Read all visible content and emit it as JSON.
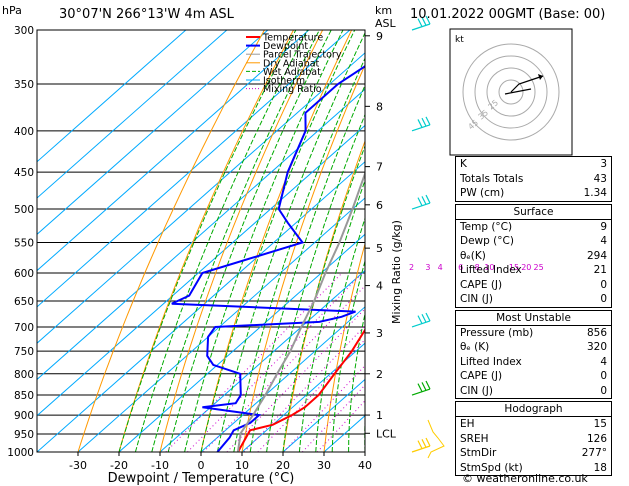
{
  "header": {
    "location": "30°07'N  266°13'W  4m  ASL",
    "datetime": "10.01.2022  00GMT  (Base: 00)",
    "p_unit": "hPa",
    "km_unit": "km",
    "asl": "ASL"
  },
  "axes": {
    "xlabel": "Dewpoint / Temperature (°C)",
    "mixing_label": "Mixing Ratio (g/kg)"
  },
  "colors": {
    "temperature": "#ff0000",
    "dewpoint": "#0000ff",
    "parcel": "#999999",
    "dry_adiabat": "#ff9900",
    "wet_adiabat": "#00aa00",
    "isotherm": "#00aaff",
    "mixing_ratio": "#cc00cc",
    "wind": "#00cccc"
  },
  "legend": [
    "Temperature",
    "Dewpoint",
    "Parcel Trajectory",
    "Dry Adiabat",
    "Wet Adiabat",
    "Isotherm",
    "Mixing Ratio"
  ],
  "chart_data": {
    "type": "line",
    "title": "30°07'N  266°13'W  4m  ASL",
    "xlabel": "Dewpoint / Temperature (°C)",
    "ylabel": "hPa",
    "x_ticks": [
      "-30",
      "-20",
      "-10",
      "0",
      "10",
      "20",
      "30",
      "40"
    ],
    "p_ticks": [
      "300",
      "350",
      "400",
      "450",
      "500",
      "550",
      "600",
      "650",
      "700",
      "750",
      "800",
      "850",
      "900",
      "950",
      "1000"
    ],
    "xlim": [
      -35,
      40
    ],
    "ylim": [
      1000,
      300
    ],
    "km_ticks": [
      {
        "p": 305,
        "label": "9"
      },
      {
        "p": 373,
        "label": "8"
      },
      {
        "p": 443,
        "label": "7"
      },
      {
        "p": 494,
        "label": "6"
      },
      {
        "p": 559,
        "label": "5"
      },
      {
        "p": 622,
        "label": "4"
      },
      {
        "p": 712,
        "label": "3"
      },
      {
        "p": 800,
        "label": "2"
      },
      {
        "p": 900,
        "label": "1"
      },
      {
        "p": 948,
        "label": "LCL"
      }
    ],
    "mixing_ratio_labels": [
      {
        "w": "2",
        "t": 2
      },
      {
        "w": "3",
        "t": 6
      },
      {
        "w": "4",
        "t": 9
      },
      {
        "w": "6",
        "t": 14
      },
      {
        "w": "8",
        "t": 18
      },
      {
        "w": "10",
        "t": 21
      },
      {
        "w": "15",
        "t": 27
      },
      {
        "w": "20",
        "t": 30
      },
      {
        "w": "25",
        "t": 33
      }
    ],
    "series": [
      {
        "name": "Temperature",
        "points": [
          [
            1000,
            9
          ],
          [
            960,
            7
          ],
          [
            940,
            6
          ],
          [
            925,
            10
          ],
          [
            900,
            12
          ],
          [
            880,
            13
          ],
          [
            850,
            13
          ],
          [
            800,
            11
          ],
          [
            750,
            9
          ],
          [
            700,
            6
          ],
          [
            680,
            5
          ],
          [
            650,
            4
          ],
          [
            600,
            -1
          ],
          [
            550,
            -5
          ],
          [
            500,
            -10
          ],
          [
            450,
            -16
          ],
          [
            400,
            -23
          ],
          [
            350,
            -32
          ],
          [
            300,
            -42
          ]
        ]
      },
      {
        "name": "Dewpoint",
        "points": [
          [
            1000,
            4
          ],
          [
            960,
            3
          ],
          [
            940,
            2
          ],
          [
            920,
            4
          ],
          [
            900,
            4
          ],
          [
            880,
            -12
          ],
          [
            870,
            -5
          ],
          [
            850,
            -6
          ],
          [
            800,
            -12
          ],
          [
            780,
            -21
          ],
          [
            760,
            -25
          ],
          [
            720,
            -30
          ],
          [
            700,
            -31
          ],
          [
            690,
            -7
          ],
          [
            680,
            -3
          ],
          [
            670,
            -1
          ],
          [
            655,
            -48
          ],
          [
            640,
            -46
          ],
          [
            600,
            -49
          ],
          [
            550,
            -33
          ],
          [
            520,
            -42
          ],
          [
            500,
            -48
          ],
          [
            450,
            -56
          ],
          [
            400,
            -63
          ],
          [
            380,
            -68
          ],
          [
            350,
            -68
          ],
          [
            330,
            -66
          ],
          [
            300,
            -72
          ]
        ]
      },
      {
        "name": "Parcel Trajectory",
        "points": [
          [
            1000,
            9
          ],
          [
            948,
            4.5
          ],
          [
            900,
            2.5
          ],
          [
            850,
            0
          ],
          [
            800,
            -3
          ],
          [
            750,
            -6
          ],
          [
            700,
            -10
          ],
          [
            650,
            -14
          ],
          [
            600,
            -19
          ],
          [
            550,
            -24
          ],
          [
            500,
            -30
          ],
          [
            450,
            -37
          ],
          [
            400,
            -45
          ],
          [
            350,
            -55
          ],
          [
            300,
            -66
          ]
        ]
      }
    ],
    "wind_barbs": [
      {
        "p": 300
      },
      {
        "p": 400
      },
      {
        "p": 500
      },
      {
        "p": 700
      },
      {
        "p": 850
      },
      {
        "p": 1000
      }
    ]
  },
  "hodograph": {
    "unit": "kt",
    "ring_labels": [
      "45",
      "35",
      "25"
    ]
  },
  "indices": {
    "rows": [
      [
        "K",
        "3"
      ],
      [
        "Totals Totals",
        "43"
      ],
      [
        "PW (cm)",
        "1.34"
      ]
    ],
    "surface": {
      "title": "Surface",
      "rows": [
        [
          "Temp (°C)",
          "9"
        ],
        [
          "Dewp (°C)",
          "4"
        ],
        [
          "θₑ(K)",
          "294"
        ],
        [
          "Lifted Index",
          "21"
        ],
        [
          "CAPE (J)",
          "0"
        ],
        [
          "CIN (J)",
          "0"
        ]
      ]
    },
    "most_unstable": {
      "title": "Most Unstable",
      "rows": [
        [
          "Pressure (mb)",
          "856"
        ],
        [
          "θₑ (K)",
          "320"
        ],
        [
          "Lifted Index",
          "4"
        ],
        [
          "CAPE (J)",
          "0"
        ],
        [
          "CIN (J)",
          "0"
        ]
      ]
    },
    "hodograph": {
      "title": "Hodograph",
      "rows": [
        [
          "EH",
          "15"
        ],
        [
          "SREH",
          "126"
        ],
        [
          "StmDir",
          "277°"
        ],
        [
          "StmSpd (kt)",
          "18"
        ]
      ]
    }
  },
  "credit": "© weatheronline.co.uk"
}
